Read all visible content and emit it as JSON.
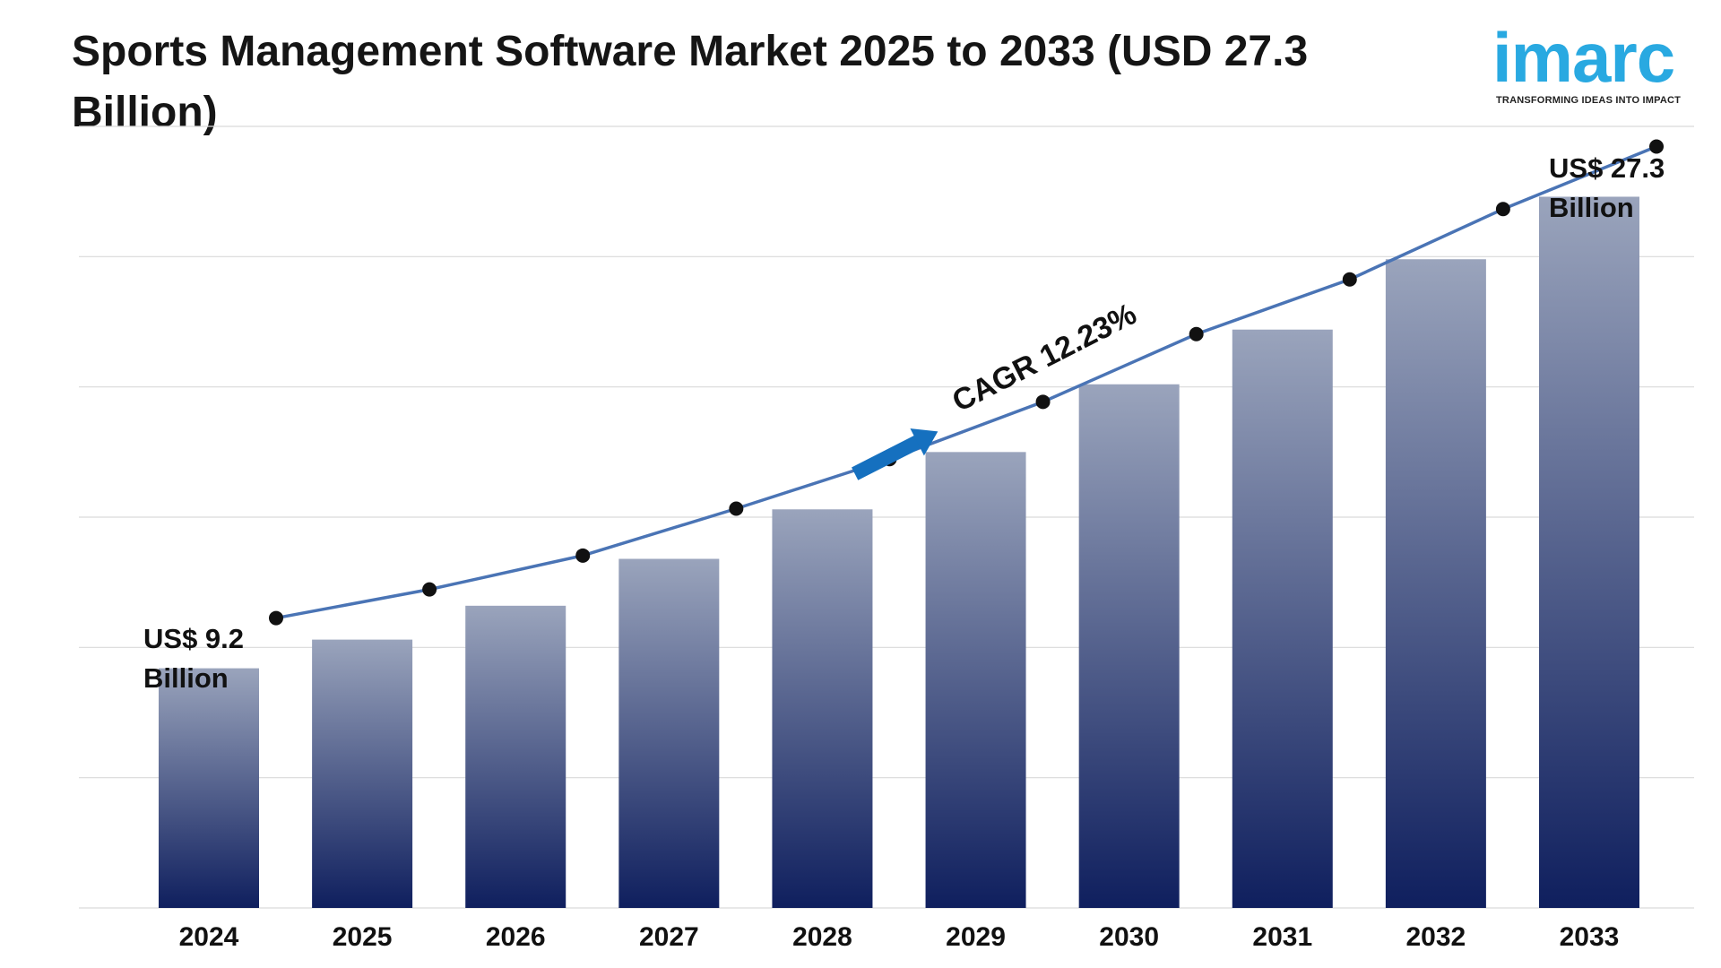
{
  "title": "Sports Management Software Market 2025 to 2033 (USD 27.3 Billion)",
  "logo": {
    "word": "imarc",
    "tagline": "TRANSFORMING IDEAS INTO IMPACT"
  },
  "colors": {
    "bar_top": "#9aa4bc",
    "bar_bottom": "#0f1f5e",
    "line": "#4a74b5",
    "marker": "#111111",
    "arrow": "#1570bf",
    "grid": "#d9d9d9",
    "logo": "#29a9e1"
  },
  "annotations": {
    "start_value": "US$ 9.2",
    "start_unit": "Billion",
    "end_value": "US$ 27.3",
    "end_unit": "Billion",
    "cagr": "CAGR 12.23%"
  },
  "chart_data": {
    "type": "bar",
    "categories": [
      "2024",
      "2025",
      "2026",
      "2027",
      "2028",
      "2029",
      "2030",
      "2031",
      "2032",
      "2033"
    ],
    "values": [
      9.2,
      10.3,
      11.6,
      13.4,
      15.3,
      17.5,
      20.1,
      22.2,
      24.9,
      27.3
    ],
    "trend_line": true,
    "ylim": [
      0,
      30
    ],
    "grid": true,
    "title": "Sports Management Software Market 2025 to 2033 (USD 27.3 Billion)",
    "xlabel": "",
    "ylabel": ""
  }
}
